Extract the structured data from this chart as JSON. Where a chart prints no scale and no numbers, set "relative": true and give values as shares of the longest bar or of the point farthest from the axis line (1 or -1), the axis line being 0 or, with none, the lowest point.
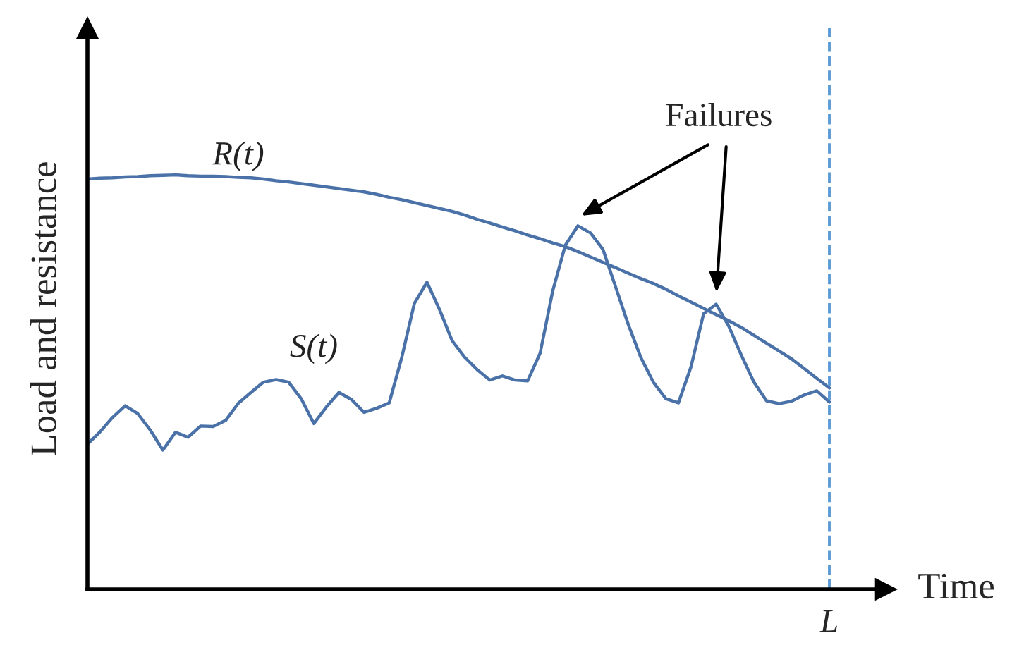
{
  "chart_data": {
    "type": "line",
    "relative": true,
    "xlabel": "Time",
    "ylabel": "Load and resistance",
    "marker": "none",
    "line_style": "solid",
    "categories": [
      null,
      null,
      null,
      null,
      null,
      null,
      null,
      null,
      null,
      null,
      null,
      null,
      null,
      null,
      null,
      null,
      null,
      null,
      null,
      null,
      null,
      null,
      null,
      null,
      null,
      null,
      null,
      null,
      null,
      null,
      null,
      null,
      null,
      null,
      null,
      null,
      null,
      null,
      null,
      null,
      null,
      null,
      null,
      null,
      null,
      null,
      null,
      null,
      null,
      null,
      null,
      null,
      null,
      null,
      null,
      null,
      null,
      null,
      null,
      null
    ],
    "ref_lines": [
      {
        "axis": "x",
        "label": "L",
        "color": "#5b9bd5",
        "line_style": "dashed"
      }
    ],
    "annotations": [
      "Failures"
    ],
    "series": [
      {
        "name": "R(t)",
        "color": "#4a72a8",
        "values": [
          0.99,
          0.992,
          0.993,
          0.995,
          0.996,
          0.998,
          0.999,
          1.0,
          0.998,
          0.997,
          0.997,
          0.996,
          0.994,
          0.993,
          0.99,
          0.986,
          0.983,
          0.979,
          0.975,
          0.971,
          0.967,
          0.963,
          0.959,
          0.953,
          0.946,
          0.94,
          0.933,
          0.926,
          0.919,
          0.912,
          0.903,
          0.893,
          0.884,
          0.874,
          0.865,
          0.855,
          0.846,
          0.836,
          0.827,
          0.815,
          0.802,
          0.789,
          0.776,
          0.763,
          0.75,
          0.738,
          0.724,
          0.708,
          0.693,
          0.678,
          0.663,
          0.648,
          0.632,
          0.613,
          0.594,
          0.575,
          0.556,
          0.533,
          0.509,
          0.486
        ]
      },
      {
        "name": "S(t)",
        "color": "#4a72a8",
        "values": [
          0.35,
          0.38,
          0.415,
          0.443,
          0.424,
          0.384,
          0.336,
          0.379,
          0.367,
          0.394,
          0.393,
          0.408,
          0.449,
          0.475,
          0.5,
          0.506,
          0.5,
          0.46,
          0.4,
          0.44,
          0.475,
          0.458,
          0.427,
          0.437,
          0.45,
          0.56,
          0.69,
          0.741,
          0.675,
          0.6,
          0.56,
          0.53,
          0.505,
          0.515,
          0.505,
          0.503,
          0.57,
          0.72,
          0.83,
          0.877,
          0.86,
          0.82,
          0.73,
          0.64,
          0.56,
          0.5,
          0.46,
          0.45,
          0.537,
          0.665,
          0.688,
          0.635,
          0.565,
          0.5,
          0.455,
          0.448,
          0.454,
          0.469,
          0.479,
          0.452
        ]
      }
    ]
  }
}
